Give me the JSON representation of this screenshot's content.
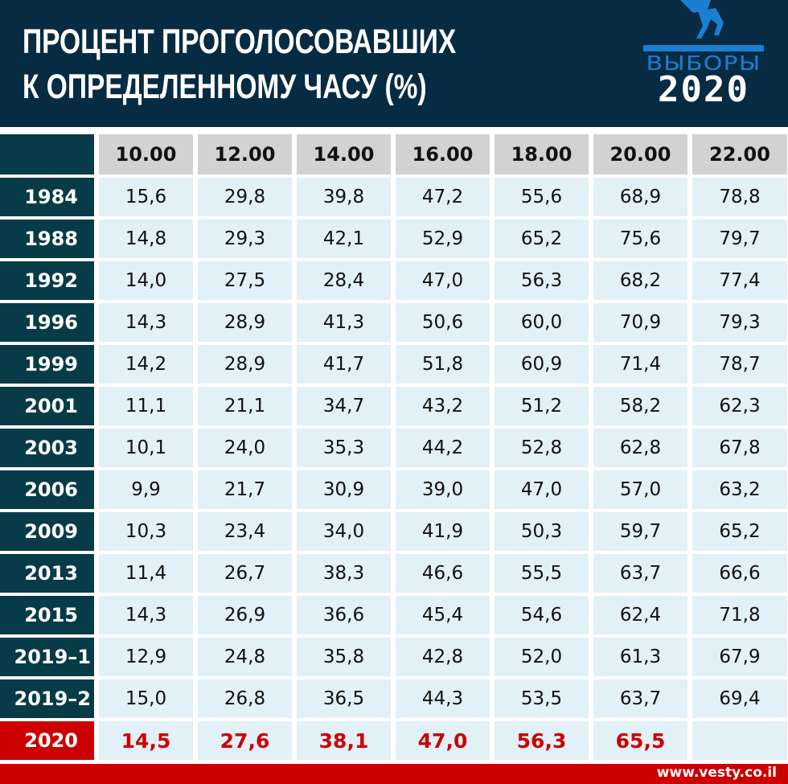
{
  "header": {
    "title_line1": "ПРОЦЕНТ ПРОГОЛОСОВАВШИХ",
    "title_line2": "К ОПРЕДЕЛЕННОМУ ЧАСУ (%)",
    "logo_word": "ВЫБОРЫ",
    "logo_year": "2020",
    "logo_icon": "ballot-box-hand-icon"
  },
  "colors": {
    "banner": "#072b43",
    "year_column": "#073b47",
    "header_cell": "#d2d2d2",
    "data_cell": "#e2f0f7",
    "highlight": "#cc0000",
    "logo_blue": "#1a7fd0"
  },
  "table": {
    "columns": [
      "10.00",
      "12.00",
      "14.00",
      "16.00",
      "18.00",
      "20.00",
      "22.00"
    ],
    "rows": [
      {
        "year": "1984",
        "values": [
          "15,6",
          "29,8",
          "39,8",
          "47,2",
          "55,6",
          "68,9",
          "78,8"
        ]
      },
      {
        "year": "1988",
        "values": [
          "14,8",
          "29,3",
          "42,1",
          "52,9",
          "65,2",
          "75,6",
          "79,7"
        ]
      },
      {
        "year": "1992",
        "values": [
          "14,0",
          "27,5",
          "28,4",
          "47,0",
          "56,3",
          "68,2",
          "77,4"
        ]
      },
      {
        "year": "1996",
        "values": [
          "14,3",
          "28,9",
          "41,3",
          "50,6",
          "60,0",
          "70,9",
          "79,3"
        ]
      },
      {
        "year": "1999",
        "values": [
          "14,2",
          "28,9",
          "41,7",
          "51,8",
          "60,9",
          "71,4",
          "78,7"
        ]
      },
      {
        "year": "2001",
        "values": [
          "11,1",
          "21,1",
          "34,7",
          "43,2",
          "51,2",
          "58,2",
          "62,3"
        ]
      },
      {
        "year": "2003",
        "values": [
          "10,1",
          "24,0",
          "35,3",
          "44,2",
          "52,8",
          "62,8",
          "67,8"
        ]
      },
      {
        "year": "2006",
        "values": [
          "9,9",
          "21,7",
          "30,9",
          "39,0",
          "47,0",
          "57,0",
          "63,2"
        ]
      },
      {
        "year": "2009",
        "values": [
          "10,3",
          "23,4",
          "34,0",
          "41,9",
          "50,3",
          "59,7",
          "65,2"
        ]
      },
      {
        "year": "2013",
        "values": [
          "11,4",
          "26,7",
          "38,3",
          "46,6",
          "55,5",
          "63,7",
          "66,6"
        ]
      },
      {
        "year": "2015",
        "values": [
          "14,3",
          "26,9",
          "36,6",
          "45,4",
          "54,6",
          "62,4",
          "71,8"
        ]
      },
      {
        "year": "2019–1",
        "values": [
          "12,9",
          "24,8",
          "35,8",
          "42,8",
          "52,0",
          "61,3",
          "67,9"
        ]
      },
      {
        "year": "2019–2",
        "values": [
          "15,0",
          "26,8",
          "36,5",
          "44,3",
          "53,5",
          "63,7",
          "69,4"
        ]
      },
      {
        "year": "2020",
        "values": [
          "14,5",
          "27,6",
          "38,1",
          "47,0",
          "56,3",
          "65,5",
          ""
        ]
      }
    ]
  },
  "footer": {
    "site": "www.vesty.co.il"
  },
  "chart_data": {
    "type": "table",
    "title": "Процент проголосовавших к определенному часу (%)",
    "columns": [
      "10.00",
      "12.00",
      "14.00",
      "16.00",
      "18.00",
      "20.00",
      "22.00"
    ],
    "row_labels": [
      "1984",
      "1988",
      "1992",
      "1996",
      "1999",
      "2001",
      "2003",
      "2006",
      "2009",
      "2013",
      "2015",
      "2019-1",
      "2019-2",
      "2020"
    ],
    "series": [
      {
        "name": "1984",
        "values": [
          15.6,
          29.8,
          39.8,
          47.2,
          55.6,
          68.9,
          78.8
        ]
      },
      {
        "name": "1988",
        "values": [
          14.8,
          29.3,
          42.1,
          52.9,
          65.2,
          75.6,
          79.7
        ]
      },
      {
        "name": "1992",
        "values": [
          14.0,
          27.5,
          28.4,
          47.0,
          56.3,
          68.2,
          77.4
        ]
      },
      {
        "name": "1996",
        "values": [
          14.3,
          28.9,
          41.3,
          50.6,
          60.0,
          70.9,
          79.3
        ]
      },
      {
        "name": "1999",
        "values": [
          14.2,
          28.9,
          41.7,
          51.8,
          60.9,
          71.4,
          78.7
        ]
      },
      {
        "name": "2001",
        "values": [
          11.1,
          21.1,
          34.7,
          43.2,
          51.2,
          58.2,
          62.3
        ]
      },
      {
        "name": "2003",
        "values": [
          10.1,
          24.0,
          35.3,
          44.2,
          52.8,
          62.8,
          67.8
        ]
      },
      {
        "name": "2006",
        "values": [
          9.9,
          21.7,
          30.9,
          39.0,
          47.0,
          57.0,
          63.2
        ]
      },
      {
        "name": "2009",
        "values": [
          10.3,
          23.4,
          34.0,
          41.9,
          50.3,
          59.7,
          65.2
        ]
      },
      {
        "name": "2013",
        "values": [
          11.4,
          26.7,
          38.3,
          46.6,
          55.5,
          63.7,
          66.6
        ]
      },
      {
        "name": "2015",
        "values": [
          14.3,
          26.9,
          36.6,
          45.4,
          54.6,
          62.4,
          71.8
        ]
      },
      {
        "name": "2019-1",
        "values": [
          12.9,
          24.8,
          35.8,
          42.8,
          52.0,
          61.3,
          67.9
        ]
      },
      {
        "name": "2019-2",
        "values": [
          15.0,
          26.8,
          36.5,
          44.3,
          53.5,
          63.7,
          69.4
        ]
      },
      {
        "name": "2020",
        "values": [
          14.5,
          27.6,
          38.1,
          47.0,
          56.3,
          65.5,
          null
        ]
      }
    ],
    "highlight_row": "2020",
    "source": "www.vesty.co.il"
  }
}
